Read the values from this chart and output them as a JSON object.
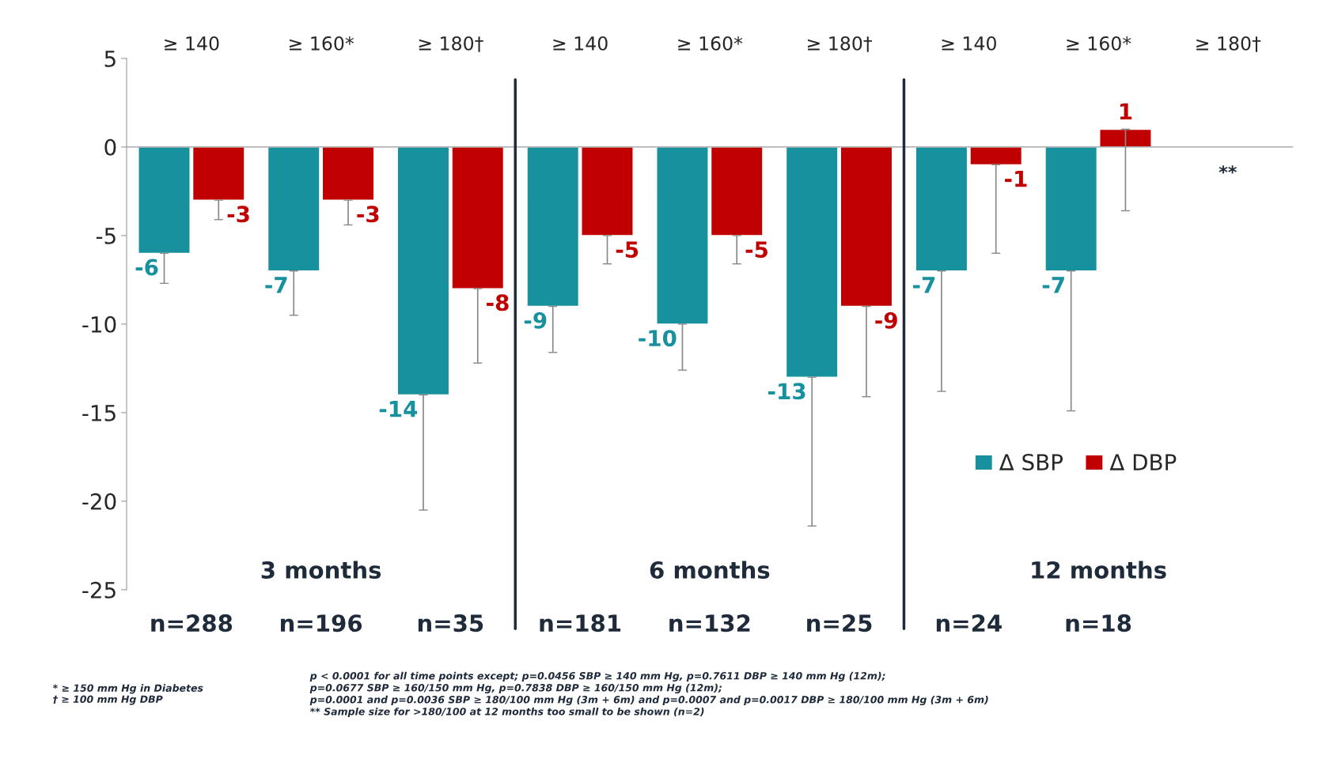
{
  "chart_data": {
    "type": "bar",
    "categories": [
      "≥ 140",
      "≥ 160*",
      "≥ 180†",
      "≥ 140",
      "≥ 160*",
      "≥ 180†",
      "≥ 140",
      "≥ 160*",
      "≥ 180†"
    ],
    "series": [
      {
        "name": "Δ SBP",
        "color": "#17919e",
        "values": [
          -6,
          -7,
          -14,
          -9,
          -10,
          -13,
          -7,
          -7,
          null
        ],
        "errors": [
          [
            -7.7,
            -6
          ],
          [
            -9.5,
            -7
          ],
          [
            -20.5,
            -14
          ],
          [
            -11.6,
            -9
          ],
          [
            -12.6,
            -10
          ],
          [
            -21.4,
            -13
          ],
          [
            -13.8,
            -7
          ],
          [
            -14.9,
            -7
          ],
          null
        ]
      },
      {
        "name": "Δ DBP",
        "color": "#c00000",
        "values": [
          -3,
          -3,
          -8,
          -5,
          -5,
          -9,
          -1,
          1,
          null
        ],
        "errors": [
          [
            -4.1,
            -3
          ],
          [
            -4.4,
            -3
          ],
          [
            -12.2,
            -8
          ],
          [
            -6.6,
            -5
          ],
          [
            -6.6,
            -5
          ],
          [
            -14.1,
            -9
          ],
          [
            -6,
            -1
          ],
          [
            -3.6,
            1
          ],
          null
        ]
      }
    ],
    "ylim": [
      -25,
      5
    ],
    "yticks": [
      5,
      0,
      -5,
      -10,
      -15,
      -20,
      -25
    ],
    "grid": false,
    "legend": "bottom right",
    "data_labels": true,
    "annotations": [
      "3 months",
      "6 months",
      "12 months",
      "n=288",
      "n=196",
      "n=35",
      "n=181",
      "n=132",
      "n=25",
      "n=24",
      "n=18",
      "**",
      "* ≥ 150 mm Hg in Diabetes\n† ≥ 100 mm Hg DBP",
      "p < 0.0001 for all time points except; p=0.0456 SBP ≥ 140 mm Hg, p=0.7611 DBP ≥ 140 mm Hg (12m);\np=0.0677 SBP ≥ 160/150 mm Hg, p=0.7838 DBP ≥ 160/150 mm Hg (12m);\np=0.0001 and p=0.0036 SBP ≥ 180/100 mm Hg (3m + 6m) and p=0.0007 and p=0.0017 DBP ≥ 180/100 mm Hg (3m + 6m)\n** Sample size for >180/100 at 12 months too small to be shown (n=2)"
    ]
  }
}
